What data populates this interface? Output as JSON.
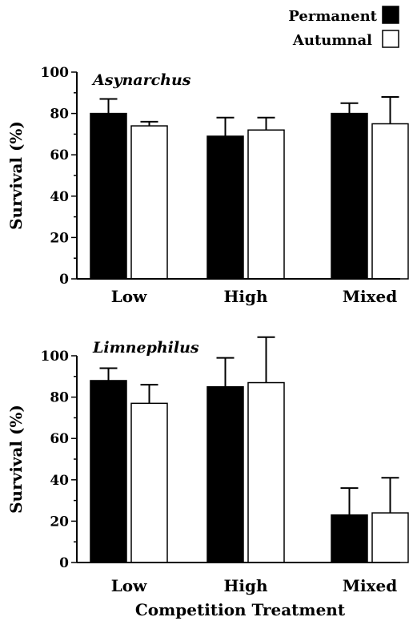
{
  "legend": {
    "items": [
      {
        "label": "Permanent",
        "fill": "#000000"
      },
      {
        "label": "Autumnal",
        "fill": "#ffffff"
      }
    ]
  },
  "x_axis_title": "Competition Treatment",
  "chart_data": [
    {
      "type": "bar",
      "title": "Asynarchus",
      "ylabel": "Survival (%)",
      "xlabel": "",
      "ylim": [
        0,
        100
      ],
      "yticks": [
        "0",
        "20",
        "40",
        "60",
        "80",
        "100"
      ],
      "categories": [
        "Low",
        "High",
        "Mixed"
      ],
      "series": [
        {
          "name": "Permanent",
          "values": [
            80,
            69,
            80
          ],
          "errors": [
            7,
            9,
            5
          ]
        },
        {
          "name": "Autumnal",
          "values": [
            74,
            72,
            75
          ],
          "errors": [
            2,
            6,
            13
          ]
        }
      ]
    },
    {
      "type": "bar",
      "title": "Limnephilus",
      "ylabel": "Survival (%)",
      "xlabel": "Competition Treatment",
      "ylim": [
        0,
        100
      ],
      "yticks": [
        "0",
        "20",
        "40",
        "60",
        "80",
        "100"
      ],
      "categories": [
        "Low",
        "High",
        "Mixed"
      ],
      "series": [
        {
          "name": "Permanent",
          "values": [
            88,
            85,
            23
          ],
          "errors": [
            6,
            14,
            13
          ]
        },
        {
          "name": "Autumnal",
          "values": [
            77,
            87,
            24
          ],
          "errors": [
            9,
            22,
            17
          ]
        }
      ]
    }
  ]
}
